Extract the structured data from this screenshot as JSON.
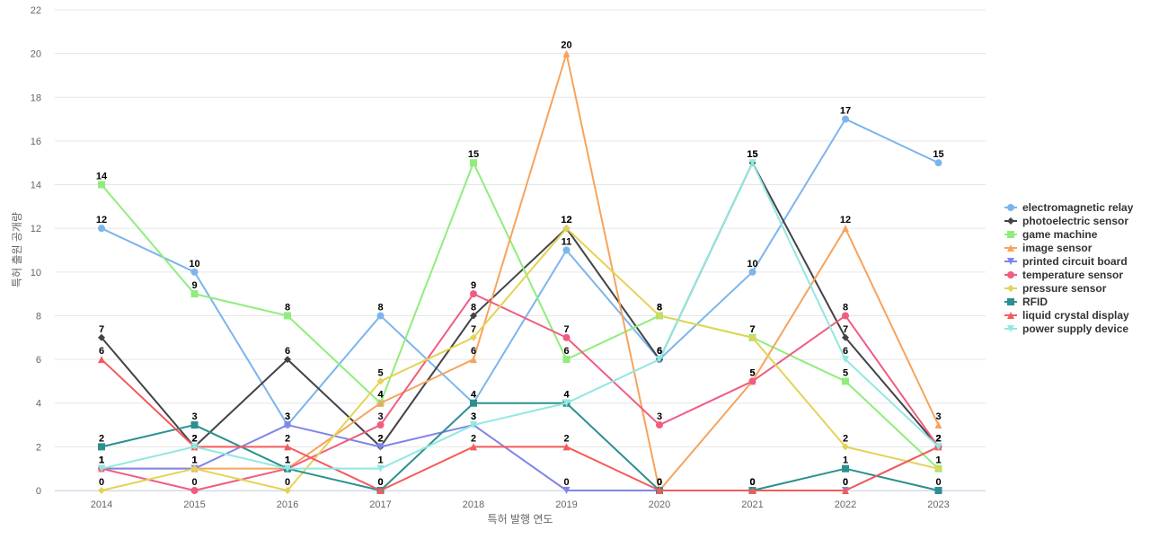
{
  "chart_data": {
    "type": "line",
    "xlabel": "특허 발행 연도",
    "ylabel": "특허 출원 공개량",
    "ylim": [
      0,
      22
    ],
    "yticks": [
      0,
      2,
      4,
      6,
      8,
      10,
      12,
      14,
      16,
      18,
      20,
      22
    ],
    "categories": [
      "2014",
      "2015",
      "2016",
      "2017",
      "2018",
      "2019",
      "2020",
      "2021",
      "2022",
      "2023"
    ],
    "grid": true,
    "legend_position": "right",
    "series": [
      {
        "name": "electromagnetic relay",
        "color": "#7cb5ec",
        "marker": "circle",
        "values": [
          12,
          10,
          3,
          8,
          4,
          11,
          6,
          10,
          17,
          15
        ]
      },
      {
        "name": "photoelectric sensor",
        "color": "#434348",
        "marker": "diamond",
        "values": [
          7,
          2,
          6,
          2,
          8,
          12,
          6,
          15,
          7,
          2
        ]
      },
      {
        "name": "game machine",
        "color": "#90ed7d",
        "marker": "square",
        "values": [
          14,
          9,
          8,
          4,
          15,
          6,
          8,
          7,
          5,
          1
        ]
      },
      {
        "name": "image sensor",
        "color": "#f7a35c",
        "marker": "triangle",
        "values": [
          1,
          1,
          1,
          4,
          6,
          20,
          0,
          5,
          12,
          3
        ]
      },
      {
        "name": "printed circuit board",
        "color": "#8085e9",
        "marker": "triangle-down",
        "values": [
          1,
          1,
          3,
          2,
          3,
          0,
          0,
          0,
          0,
          2
        ]
      },
      {
        "name": "temperature sensor",
        "color": "#f15c80",
        "marker": "circle",
        "values": [
          1,
          0,
          1,
          3,
          9,
          7,
          3,
          5,
          8,
          2
        ]
      },
      {
        "name": "pressure sensor",
        "color": "#e4d354",
        "marker": "diamond",
        "values": [
          0,
          1,
          0,
          5,
          7,
          12,
          8,
          7,
          2,
          1
        ]
      },
      {
        "name": "RFID",
        "color": "#2b908f",
        "marker": "square",
        "values": [
          2,
          3,
          1,
          0,
          4,
          4,
          0,
          0,
          1,
          0
        ]
      },
      {
        "name": "liquid crystal display",
        "color": "#f45b5b",
        "marker": "triangle",
        "values": [
          6,
          2,
          2,
          0,
          2,
          2,
          0,
          0,
          0,
          2
        ]
      },
      {
        "name": "power supply device",
        "color": "#91e8e1",
        "marker": "triangle-down",
        "values": [
          1,
          2,
          1,
          1,
          3,
          4,
          6,
          15,
          6,
          2
        ]
      }
    ]
  }
}
